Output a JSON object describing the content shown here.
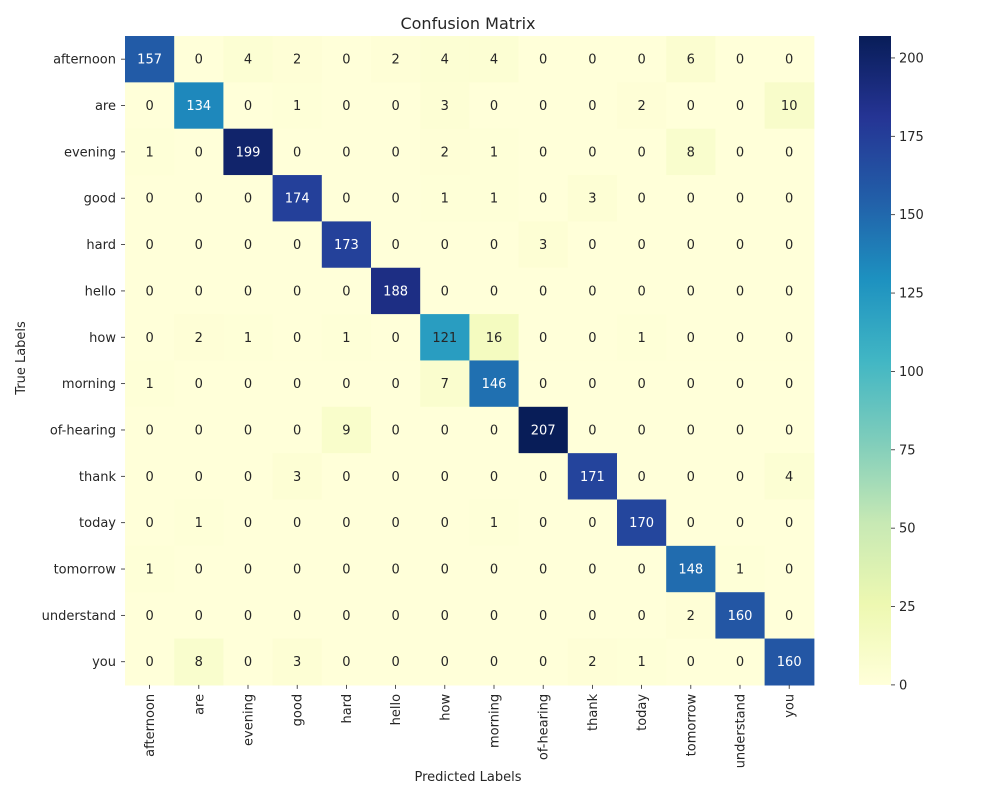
{
  "chart_data": {
    "type": "heatmap",
    "title": "Confusion Matrix",
    "xlabel": "Predicted Labels",
    "ylabel": "True Labels",
    "x_categories": [
      "afternoon",
      "are",
      "evening",
      "good",
      "hard",
      "hello",
      "how",
      "morning",
      "of-hearing",
      "thank",
      "today",
      "tomorrow",
      "understand",
      "you"
    ],
    "y_categories": [
      "afternoon",
      "are",
      "evening",
      "good",
      "hard",
      "hello",
      "how",
      "morning",
      "of-hearing",
      "thank",
      "today",
      "tomorrow",
      "understand",
      "you"
    ],
    "values": [
      [
        157,
        0,
        4,
        2,
        0,
        2,
        4,
        4,
        0,
        0,
        0,
        6,
        0,
        0
      ],
      [
        0,
        134,
        0,
        1,
        0,
        0,
        3,
        0,
        0,
        0,
        2,
        0,
        0,
        10
      ],
      [
        1,
        0,
        199,
        0,
        0,
        0,
        2,
        1,
        0,
        0,
        0,
        8,
        0,
        0
      ],
      [
        0,
        0,
        0,
        174,
        0,
        0,
        1,
        1,
        0,
        3,
        0,
        0,
        0,
        0
      ],
      [
        0,
        0,
        0,
        0,
        173,
        0,
        0,
        0,
        3,
        0,
        0,
        0,
        0,
        0
      ],
      [
        0,
        0,
        0,
        0,
        0,
        188,
        0,
        0,
        0,
        0,
        0,
        0,
        0,
        0
      ],
      [
        0,
        2,
        1,
        0,
        1,
        0,
        121,
        16,
        0,
        0,
        1,
        0,
        0,
        0
      ],
      [
        1,
        0,
        0,
        0,
        0,
        0,
        7,
        146,
        0,
        0,
        0,
        0,
        0,
        0
      ],
      [
        0,
        0,
        0,
        0,
        9,
        0,
        0,
        0,
        207,
        0,
        0,
        0,
        0,
        0
      ],
      [
        0,
        0,
        0,
        3,
        0,
        0,
        0,
        0,
        0,
        171,
        0,
        0,
        0,
        4
      ],
      [
        0,
        1,
        0,
        0,
        0,
        0,
        0,
        1,
        0,
        0,
        170,
        0,
        0,
        0
      ],
      [
        1,
        0,
        0,
        0,
        0,
        0,
        0,
        0,
        0,
        0,
        0,
        148,
        1,
        0
      ],
      [
        0,
        0,
        0,
        0,
        0,
        0,
        0,
        0,
        0,
        0,
        0,
        2,
        160,
        0
      ],
      [
        0,
        8,
        0,
        3,
        0,
        0,
        0,
        0,
        0,
        2,
        1,
        0,
        0,
        160
      ]
    ],
    "colormap": "YlGnBu",
    "value_range": [
      0,
      207
    ],
    "colorbar_ticks": [
      0,
      25,
      50,
      75,
      100,
      125,
      150,
      175,
      200
    ],
    "annotations": true,
    "grid": false,
    "colorbar_position": "right"
  }
}
